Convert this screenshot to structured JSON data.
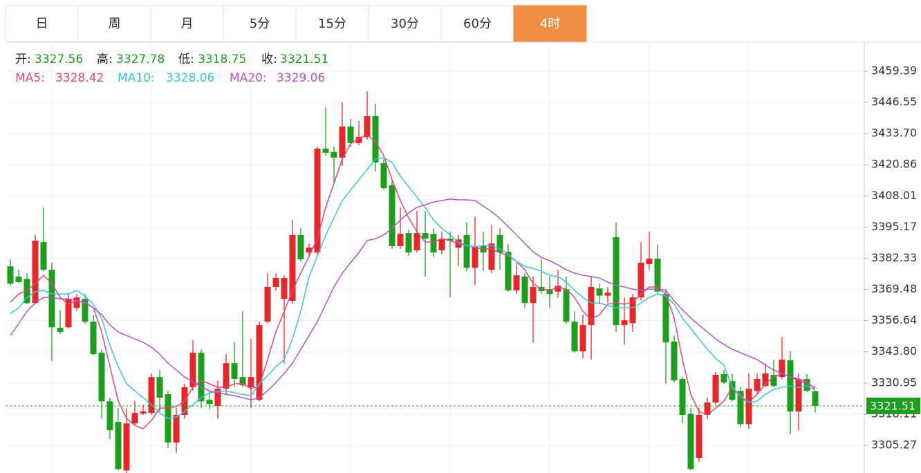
{
  "tabs": {
    "items": [
      "日",
      "周",
      "月",
      "5分",
      "15分",
      "30分",
      "60分",
      "4时"
    ],
    "active": 7
  },
  "chart_data": {
    "type": "candlestick",
    "up_color": "#e5262b",
    "down_color": "#1e9e1e",
    "info_labels": [
      "开:",
      "高:",
      "低:",
      "收:"
    ],
    "open": [
      3379.0,
      3374.8,
      3373.8,
      3363.9,
      3389.0,
      3377.6,
      3353.7,
      3353.9,
      3361.9,
      3365.6,
      3356.2,
      3343.4,
      3323.4,
      3314.9,
      3294.9,
      3314.3,
      3318.3,
      3318.6,
      3333.4,
      3326.3,
      3306.4,
      3317.8,
      3329.2,
      3343.4,
      3324.0,
      3321.5,
      3328.6,
      3339.1,
      3333.4,
      3329.2,
      3324.0,
      3356.2,
      3370.5,
      3365.6,
      3364.8,
      3391.9,
      3384.7,
      3384.7,
      3427.5,
      3426.1,
      3423.8,
      3436.6,
      3429.8,
      3432.3,
      3440.9,
      3421.5,
      3412.4,
      3387.3,
      3392.7,
      3385.6,
      3392.7,
      3392.4,
      3385.6,
      3390.4,
      3386.7,
      3391.9,
      3378.4,
      3387.6,
      3377.6,
      3391.9,
      3385.0,
      3369.1,
      3374.8,
      3363.9,
      3370.5,
      3369.6,
      3368.6,
      3369.6,
      3356.2,
      3344.0,
      3354.8,
      3369.9,
      3366.9,
      3391.0,
      3354.8,
      3355.6,
      3366.2,
      3379.9,
      3382.2,
      3367.6,
      3348.0,
      3332.6,
      3318.3,
      3300.1,
      3317.8,
      3322.9,
      3334.6,
      3331.7,
      3327.7,
      3314.0,
      3327.7,
      3329.7,
      3334.3,
      3333.4,
      3340.3,
      3319.2,
      3332.6,
      3327.56
    ],
    "high": [
      3381.9,
      3377.6,
      3376.2,
      3391.9,
      3403.3,
      3380.5,
      3361.1,
      3367.6,
      3367.6,
      3367.6,
      3359.1,
      3344.8,
      3324.9,
      3320.6,
      3320.6,
      3323.4,
      3322.0,
      3334.9,
      3336.3,
      3327.7,
      3320.6,
      3330.6,
      3348.5,
      3344.8,
      3327.7,
      3332.0,
      3342.8,
      3347.7,
      3360.5,
      3349.1,
      3356.2,
      3376.2,
      3376.2,
      3375.3,
      3398.1,
      3394.7,
      3388.4,
      3428.3,
      3444.6,
      3428.3,
      3446.6,
      3439.7,
      3438.9,
      3451.1,
      3446.0,
      3423.2,
      3414.7,
      3403.3,
      3394.1,
      3401.8,
      3401.8,
      3394.7,
      3393.3,
      3393.3,
      3391.9,
      3397.0,
      3399.5,
      3393.3,
      3396.1,
      3394.7,
      3388.1,
      3380.5,
      3376.2,
      3374.8,
      3381.9,
      3374.8,
      3377.6,
      3374.8,
      3360.5,
      3359.1,
      3374.8,
      3371.9,
      3370.5,
      3397.0,
      3366.2,
      3367.6,
      3389.0,
      3393.3,
      3387.9,
      3369.6,
      3350.5,
      3333.4,
      3320.6,
      3320.6,
      3324.9,
      3335.4,
      3336.3,
      3334.9,
      3329.2,
      3334.9,
      3334.9,
      3339.1,
      3340.6,
      3350.0,
      3344.0,
      3334.9,
      3334.6,
      3327.78
    ],
    "low": [
      3371.0,
      3371.9,
      3363.4,
      3363.4,
      3377.0,
      3340.0,
      3351.1,
      3353.4,
      3360.5,
      3355.4,
      3342.3,
      3316.3,
      3307.8,
      3294.9,
      3293.8,
      3313.8,
      3317.8,
      3317.8,
      3319.2,
      3304.1,
      3302.1,
      3316.3,
      3327.7,
      3320.6,
      3320.0,
      3316.3,
      3326.3,
      3329.2,
      3329.2,
      3320.6,
      3323.4,
      3355.6,
      3369.1,
      3339.1,
      3363.4,
      3381.0,
      3382.7,
      3383.9,
      3424.6,
      3413.2,
      3420.4,
      3428.3,
      3428.9,
      3431.2,
      3418.1,
      3410.6,
      3386.2,
      3386.2,
      3383.3,
      3384.7,
      3374.8,
      3382.7,
      3383.9,
      3366.2,
      3379.0,
      3377.0,
      3371.3,
      3377.0,
      3376.2,
      3377.6,
      3368.6,
      3367.6,
      3361.9,
      3347.7,
      3367.6,
      3361.9,
      3366.2,
      3355.4,
      3343.4,
      3341.1,
      3340.6,
      3363.4,
      3363.9,
      3352.0,
      3346.8,
      3352.0,
      3365.0,
      3377.6,
      3367.6,
      3330.6,
      3331.2,
      3314.3,
      3294.9,
      3298.4,
      3316.0,
      3322.0,
      3330.6,
      3323.4,
      3312.6,
      3312.0,
      3326.3,
      3329.2,
      3329.2,
      3332.6,
      3309.8,
      3311.5,
      3327.2,
      3318.75
    ],
    "close": [
      3371.9,
      3372.5,
      3363.9,
      3389.6,
      3377.6,
      3353.9,
      3352.0,
      3365.6,
      3366.2,
      3356.2,
      3342.8,
      3323.4,
      3311.5,
      3295.5,
      3314.3,
      3318.6,
      3319.2,
      3333.4,
      3324.9,
      3306.4,
      3317.8,
      3329.2,
      3343.4,
      3323.4,
      3322.3,
      3328.6,
      3339.1,
      3332.6,
      3330.0,
      3333.4,
      3354.8,
      3370.5,
      3374.2,
      3374.2,
      3391.9,
      3381.9,
      3386.7,
      3427.5,
      3425.8,
      3423.8,
      3436.6,
      3429.8,
      3432.3,
      3440.9,
      3421.8,
      3411.2,
      3387.3,
      3392.4,
      3384.7,
      3392.7,
      3390.4,
      3384.7,
      3390.4,
      3389.6,
      3390.1,
      3378.4,
      3387.3,
      3384.7,
      3388.4,
      3384.7,
      3369.1,
      3375.3,
      3363.9,
      3370.5,
      3368.8,
      3367.6,
      3371.0,
      3356.2,
      3344.0,
      3354.8,
      3370.5,
      3366.9,
      3368.2,
      3354.8,
      3356.8,
      3366.2,
      3380.5,
      3382.2,
      3368.6,
      3347.7,
      3332.0,
      3317.8,
      3295.5,
      3317.8,
      3322.9,
      3334.3,
      3331.2,
      3324.0,
      3314.0,
      3328.6,
      3332.6,
      3334.9,
      3329.7,
      3340.6,
      3319.2,
      3332.6,
      3327.7,
      3321.51
    ],
    "series": [
      {
        "name": "MA5:",
        "color": "#e0457b",
        "values": [
          3364.2,
          3367.6,
          3369.1,
          3371.9,
          3375.3,
          3371.9,
          3366.2,
          3363.4,
          3364.8,
          3364.2,
          3361.9,
          3352.0,
          3337.7,
          3323.5,
          3316.3,
          3313.5,
          3312.1,
          3315.5,
          3320.6,
          3320.6,
          3321.2,
          3323.5,
          3329.2,
          3332.0,
          3330.6,
          3329.2,
          3329.2,
          3330.6,
          3330.6,
          3328.6,
          3329.7,
          3340.6,
          3352.0,
          3360.5,
          3369.1,
          3376.2,
          3383.3,
          3390.4,
          3403.3,
          3413.2,
          3423.2,
          3429.5,
          3431.8,
          3433.2,
          3430.3,
          3424.6,
          3414.7,
          3406.1,
          3399.0,
          3393.3,
          3389.0,
          3389.0,
          3390.4,
          3389.6,
          3388.4,
          3387.6,
          3386.7,
          3386.2,
          3386.2,
          3384.7,
          3383.3,
          3381.0,
          3377.6,
          3371.9,
          3369.6,
          3369.1,
          3370.5,
          3369.6,
          3366.2,
          3360.5,
          3357.1,
          3359.1,
          3363.4,
          3363.9,
          3363.4,
          3364.2,
          3367.6,
          3370.5,
          3370.5,
          3367.6,
          3357.7,
          3340.6,
          3326.3,
          3319.2,
          3317.8,
          3320.6,
          3323.5,
          3329.2,
          3324.9,
          3322.9,
          3326.3,
          3330.6,
          3333.4,
          3334.9,
          3333.4,
          3332.6,
          3331.4,
          3328.42
        ]
      },
      {
        "name": "MA10:",
        "color": "#3cc4d2",
        "values": [
          3359.6,
          3361.9,
          3366.2,
          3368.5,
          3369.1,
          3367.6,
          3367.6,
          3367.6,
          3369.1,
          3366.8,
          3363.4,
          3357.7,
          3346.3,
          3337.7,
          3330.6,
          3327.7,
          3324.9,
          3322.0,
          3318.6,
          3316.3,
          3316.9,
          3319.2,
          3322.0,
          3324.9,
          3326.9,
          3327.4,
          3327.7,
          3326.9,
          3326.3,
          3325.7,
          3330.6,
          3334.0,
          3337.7,
          3340.6,
          3349.1,
          3360.5,
          3374.8,
          3383.3,
          3391.9,
          3399.0,
          3406.1,
          3410.4,
          3414.7,
          3418.9,
          3423.2,
          3423.8,
          3421.8,
          3416.1,
          3411.8,
          3407.5,
          3403.3,
          3398.1,
          3394.7,
          3391.9,
          3389.0,
          3387.6,
          3387.0,
          3387.6,
          3387.6,
          3386.2,
          3383.9,
          3381.0,
          3379.0,
          3378.2,
          3377.0,
          3375.3,
          3374.8,
          3372.5,
          3369.1,
          3366.2,
          3363.9,
          3363.9,
          3362.8,
          3361.9,
          3361.9,
          3361.9,
          3363.9,
          3366.2,
          3367.6,
          3366.8,
          3363.4,
          3357.7,
          3353.4,
          3349.1,
          3344.8,
          3341.1,
          3338.3,
          3329.2,
          3325.7,
          3322.9,
          3323.5,
          3326.3,
          3328.3,
          3329.2,
          3329.7,
          3329.2,
          3329.7,
          3328.06
        ]
      },
      {
        "name": "MA20:",
        "color": "#b455c6",
        "values": [
          3350.5,
          3355.4,
          3360.5,
          3363.9,
          3366.2,
          3366.2,
          3365.6,
          3365.6,
          3364.8,
          3363.9,
          3361.9,
          3359.1,
          3354.8,
          3352.0,
          3350.5,
          3349.1,
          3347.7,
          3345.7,
          3342.8,
          3339.1,
          3336.3,
          3333.4,
          3331.4,
          3329.2,
          3327.7,
          3326.9,
          3326.3,
          3325.7,
          3324.9,
          3324.0,
          3324.9,
          3327.7,
          3331.1,
          3334.9,
          3339.1,
          3344.8,
          3350.5,
          3356.2,
          3363.4,
          3370.5,
          3376.2,
          3380.5,
          3384.7,
          3389.6,
          3390.4,
          3391.9,
          3394.7,
          3398.1,
          3401.0,
          3403.3,
          3404.4,
          3405.5,
          3406.1,
          3406.7,
          3406.4,
          3406.4,
          3406.1,
          3403.8,
          3401.5,
          3398.7,
          3395.3,
          3391.9,
          3388.4,
          3385.0,
          3382.7,
          3381.3,
          3379.6,
          3377.6,
          3376.2,
          3375.3,
          3374.8,
          3374.2,
          3372.5,
          3371.3,
          3370.5,
          3369.6,
          3369.1,
          3369.6,
          3369.6,
          3369.1,
          3364.8,
          3361.1,
          3357.7,
          3354.8,
          3352.0,
          3349.1,
          3346.8,
          3344.8,
          3343.4,
          3342.0,
          3340.6,
          3338.3,
          3336.3,
          3334.9,
          3333.4,
          3332.0,
          3330.6,
          3329.06
        ]
      }
    ],
    "ylim": [
      3293.86,
      3471.07
    ],
    "yticks": [
      3459.39,
      3446.55,
      {
        "value": 3433.7,
        "label": "3433.70"
      },
      3420.86,
      3408.01,
      3395.17,
      3382.33,
      3369.48,
      3356.64,
      {
        "value": 3343.8,
        "label": "3343.80"
      },
      3330.95,
      3318.11,
      3305.27
    ],
    "grid": true
  }
}
